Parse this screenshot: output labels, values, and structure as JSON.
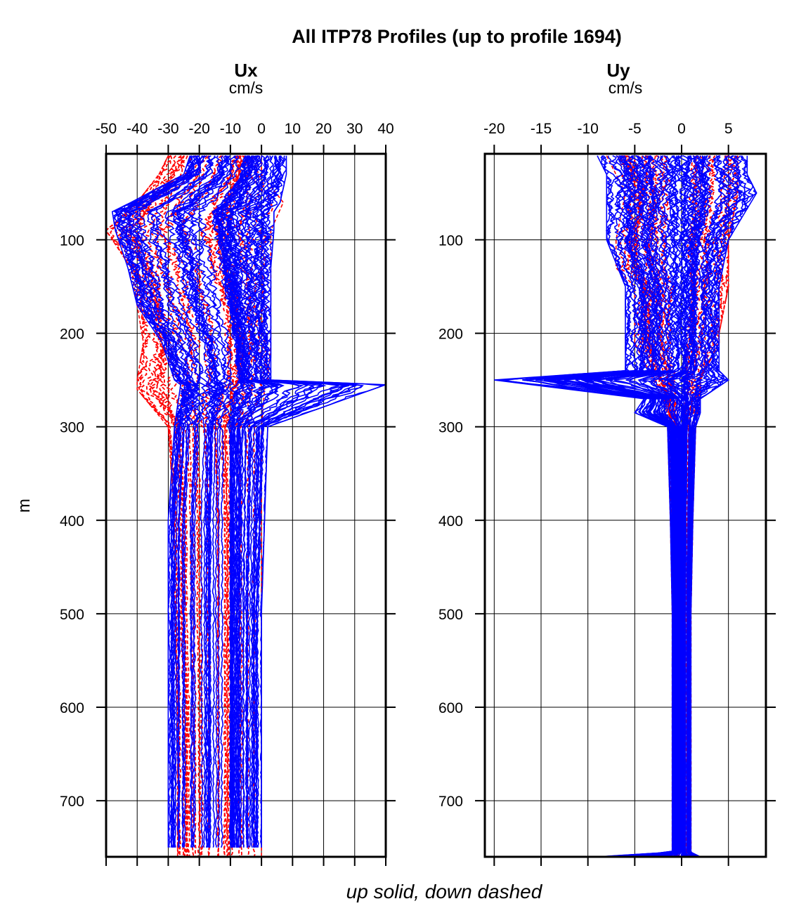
{
  "figure": {
    "title": "All ITP78 Profiles (up to profile 1694)",
    "ylabel": "m",
    "footer": "up solid, down dashed"
  },
  "chart_data": [
    {
      "type": "line",
      "panel": "Ux",
      "title": "Ux",
      "xlabel": "cm/s",
      "ylabel": "m",
      "xlim": [
        -50,
        40
      ],
      "ylim": [
        760,
        8
      ],
      "x_ticks": [
        -50,
        -40,
        -30,
        -20,
        -10,
        0,
        10,
        20,
        30,
        40
      ],
      "x_tick_labels": [
        "-50",
        "-40",
        "-30",
        "-20",
        "-10",
        "0",
        "10",
        "20",
        "30",
        "40"
      ],
      "y_ticks": [
        100,
        200,
        300,
        400,
        500,
        600,
        700
      ],
      "y_tick_labels": [
        "100",
        "200",
        "300",
        "400",
        "500",
        "600",
        "700"
      ],
      "grid": true,
      "series": [
        {
          "style": "up (solid)",
          "color": "#0000ff",
          "depth": [
            10,
            30,
            60,
            70,
            90,
            130,
            170,
            210,
            250,
            255,
            300,
            400,
            500,
            600,
            700,
            750
          ],
          "envelope_min": [
            -23,
            -25,
            -42,
            -48,
            -47,
            -43,
            -40,
            -32,
            -28,
            -26,
            -28,
            -30,
            -30,
            -30,
            -30,
            -30
          ],
          "envelope_max": [
            8,
            8,
            6,
            4,
            4,
            3,
            3,
            3,
            3,
            40,
            2,
            1,
            0,
            0,
            0,
            0
          ],
          "typical": [
            -5,
            -6,
            -12,
            -15,
            -14,
            -12,
            -10,
            -8,
            -7,
            -8,
            -10,
            -10,
            -10,
            -10,
            -10,
            -10
          ]
        },
        {
          "style": "down (dashed)",
          "color": "#ff0000",
          "depth": [
            10,
            30,
            60,
            90,
            130,
            170,
            210,
            250,
            260,
            300,
            400,
            500,
            600,
            700,
            760
          ],
          "envelope_min": [
            -30,
            -33,
            -40,
            -50,
            -42,
            -40,
            -38,
            -40,
            -40,
            -30,
            -28,
            -28,
            -27,
            -27,
            -27
          ],
          "envelope_max": [
            0,
            0,
            7,
            3,
            3,
            3,
            3,
            2,
            1,
            0,
            0,
            0,
            0,
            0,
            0
          ],
          "typical": [
            -8,
            -10,
            -15,
            -18,
            -15,
            -12,
            -10,
            -10,
            -12,
            -15,
            -14,
            -14,
            -14,
            -14,
            -14
          ]
        }
      ]
    },
    {
      "type": "line",
      "panel": "Uy",
      "title": "Uy",
      "xlabel": "cm/s",
      "ylabel": "m",
      "xlim": [
        -21,
        9
      ],
      "ylim": [
        760,
        8
      ],
      "x_ticks": [
        -20,
        -15,
        -10,
        -5,
        0,
        5
      ],
      "x_tick_labels": [
        "-20",
        "-15",
        "-10",
        "-5",
        "0",
        "5"
      ],
      "y_ticks": [
        100,
        200,
        300,
        400,
        500,
        600,
        700
      ],
      "y_tick_labels": [
        "100",
        "200",
        "300",
        "400",
        "500",
        "600",
        "700"
      ],
      "grid": true,
      "series": [
        {
          "style": "up (solid)",
          "color": "#0000ff",
          "depth": [
            10,
            30,
            50,
            100,
            150,
            200,
            240,
            250,
            270,
            285,
            300,
            400,
            500,
            600,
            700,
            755,
            760
          ],
          "envelope_min": [
            -9,
            -8,
            -8,
            -8,
            -6,
            -6,
            -6,
            -20,
            -4,
            -5,
            -1.5,
            -1.2,
            -1,
            -1,
            -1,
            -1,
            -9
          ],
          "envelope_max": [
            7,
            7,
            8,
            5,
            4,
            4,
            4,
            5,
            2,
            2,
            1.5,
            1.2,
            1,
            1,
            1,
            1,
            2
          ],
          "typical": [
            0,
            0,
            0,
            0,
            0,
            0,
            0,
            -2,
            0,
            0,
            0,
            0,
            0,
            0,
            0,
            0,
            0
          ]
        },
        {
          "style": "down (dashed)",
          "color": "#ff0000",
          "depth": [
            10,
            50,
            100,
            130,
            150,
            200,
            210,
            250,
            270,
            300,
            400,
            500,
            600,
            700,
            760
          ],
          "envelope_min": [
            -8,
            -6,
            -7,
            -7,
            -5,
            -5,
            -5,
            -3,
            -2,
            -1.5,
            -1.2,
            -1,
            -1,
            -1,
            -1
          ],
          "envelope_max": [
            6,
            6,
            5,
            5,
            5,
            4,
            4,
            2,
            2,
            1.5,
            1.2,
            1,
            1,
            1,
            1
          ],
          "typical": [
            0,
            0,
            0,
            0,
            0,
            0,
            0,
            0,
            0,
            0,
            0,
            0,
            0,
            0,
            0
          ]
        }
      ]
    }
  ]
}
